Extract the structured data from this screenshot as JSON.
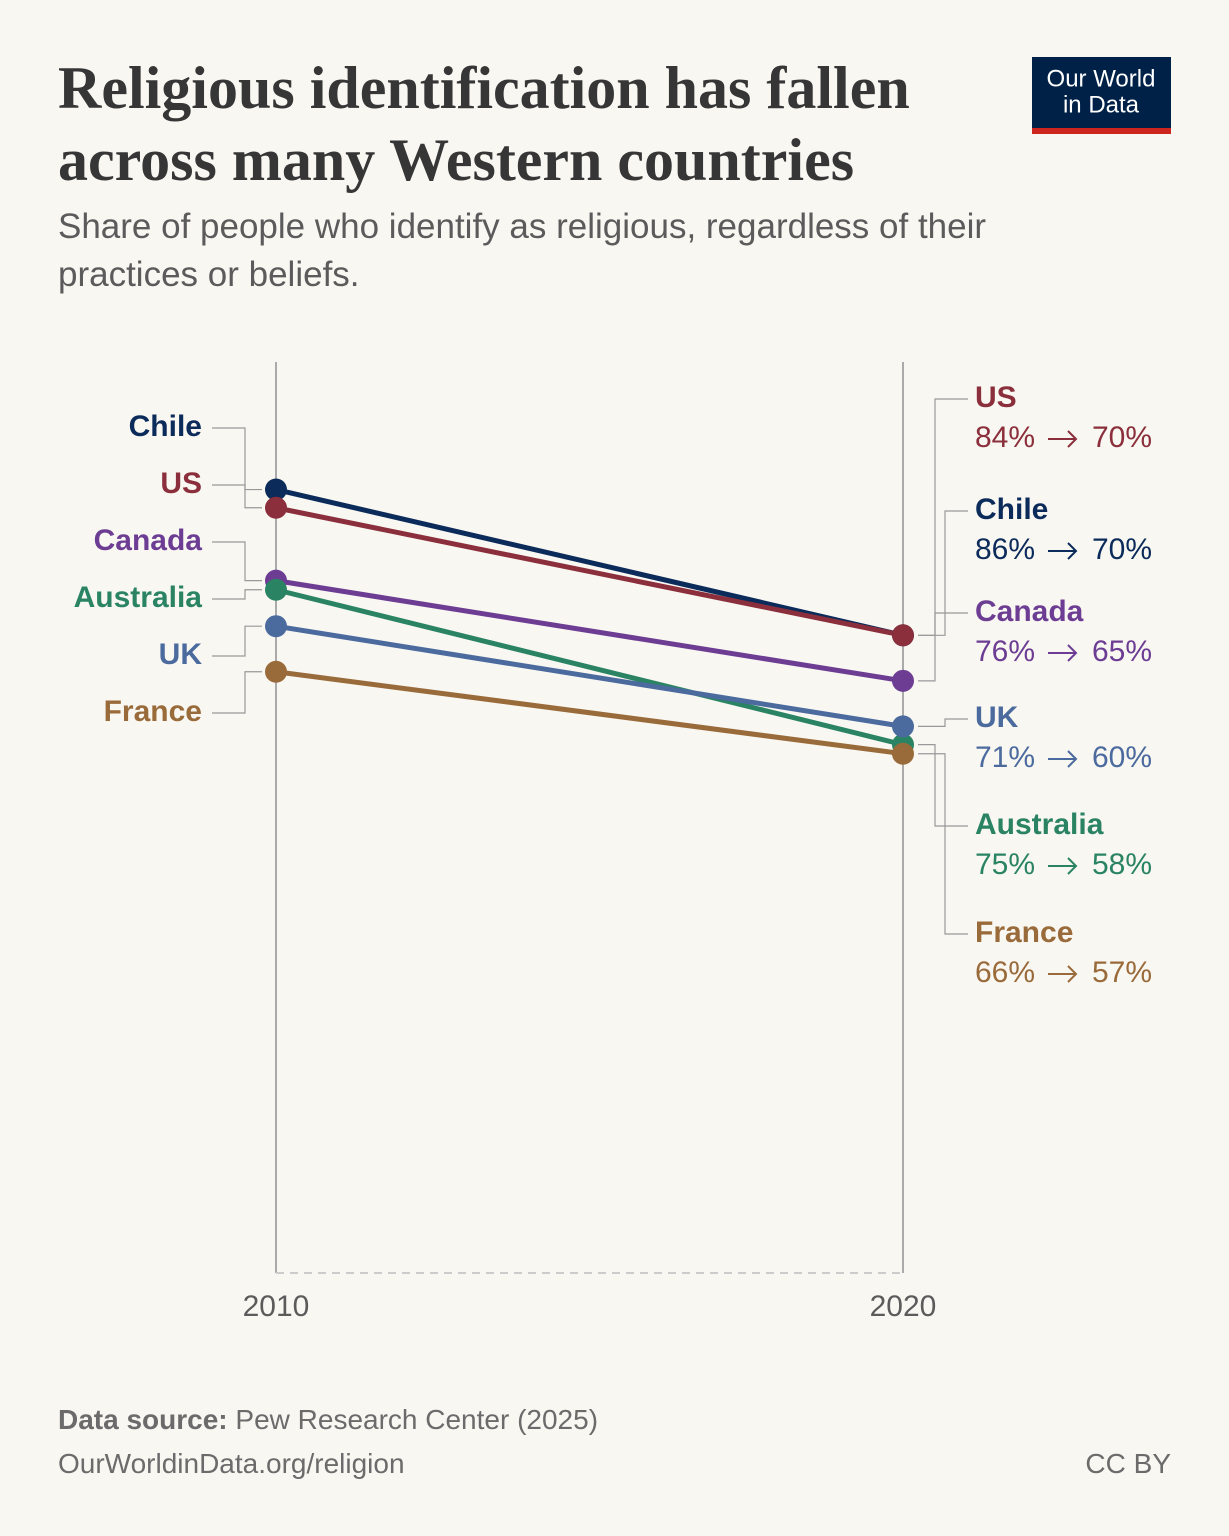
{
  "chart_data": {
    "type": "slope",
    "title": "Religious identification has fallen across many Western countries",
    "subtitle": "Share of people who identify as religious, regardless of their practices or beliefs.",
    "logo": [
      "Our World",
      "in Data"
    ],
    "x": [
      "2010",
      "2020"
    ],
    "ylim": [
      0,
      100
    ],
    "series": [
      {
        "name": "Chile",
        "color": "#0b2b5a",
        "values": [
          86,
          70
        ],
        "value_labels": [
          "86%",
          "70%"
        ]
      },
      {
        "name": "US",
        "color": "#8a2f3b",
        "values": [
          84,
          70
        ],
        "value_labels": [
          "84%",
          "70%"
        ]
      },
      {
        "name": "Canada",
        "color": "#6c3d93",
        "values": [
          76,
          65
        ],
        "value_labels": [
          "76%",
          "65%"
        ]
      },
      {
        "name": "Australia",
        "color": "#2a8464",
        "values": [
          75,
          58
        ],
        "value_labels": [
          "75%",
          "58%"
        ]
      },
      {
        "name": "UK",
        "color": "#4b6a9e",
        "values": [
          71,
          60
        ],
        "value_labels": [
          "71%",
          "60%"
        ]
      },
      {
        "name": "France",
        "color": "#9a6b3a",
        "values": [
          66,
          57
        ],
        "value_labels": [
          "66%",
          "57%"
        ]
      }
    ],
    "source_label": "Data source:",
    "source": "Pew Research Center (2025)",
    "url": "OurWorldinData.org/religion",
    "license": "CC BY"
  }
}
